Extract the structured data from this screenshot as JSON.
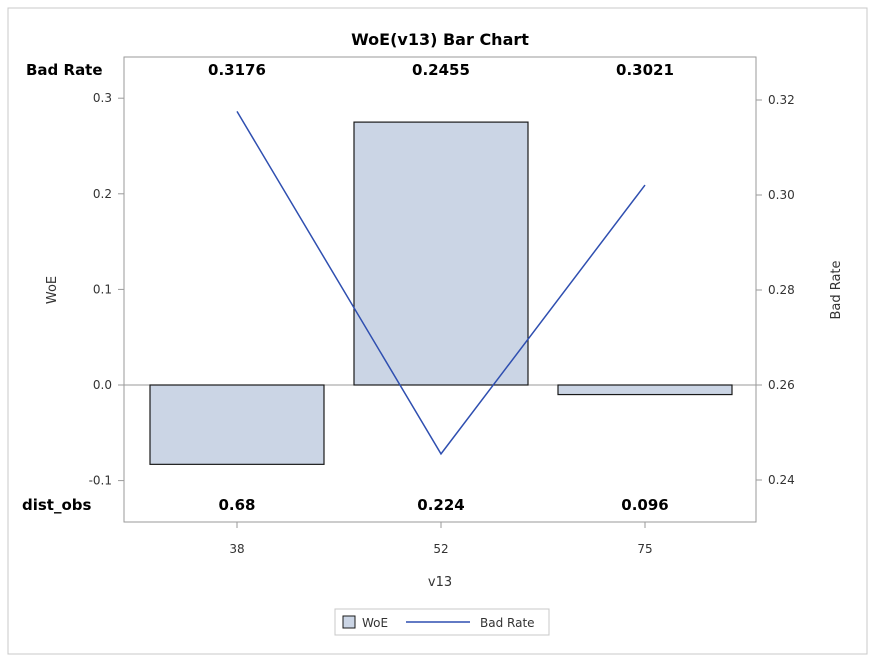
{
  "chart_data": {
    "type": "bar",
    "title": "WoE(v13) Bar Chart",
    "xlabel": "v13",
    "ylabel": "WoE",
    "y2label": "Bad Rate",
    "categories": [
      "38",
      "52",
      "75"
    ],
    "series": [
      {
        "name": "WoE",
        "type": "bar",
        "axis": "left",
        "values": [
          -0.083,
          0.275,
          -0.01
        ]
      },
      {
        "name": "Bad Rate",
        "type": "line",
        "axis": "right",
        "values": [
          0.3176,
          0.2455,
          0.3021
        ]
      }
    ],
    "ylim": [
      -0.1,
      0.3
    ],
    "yticks": [
      -0.1,
      0.0,
      0.1,
      0.2,
      0.3
    ],
    "y2ticks": [
      0.24,
      0.26,
      0.28,
      0.3,
      0.32
    ],
    "top_row": {
      "label": "Bad Rate",
      "values": [
        "0.3176",
        "0.2455",
        "0.3021"
      ]
    },
    "bottom_row": {
      "label": "dist_obs",
      "values": [
        "0.68",
        "0.224",
        "0.096"
      ]
    },
    "legend": {
      "position": "bottom-center",
      "items": [
        "WoE",
        "Bad Rate"
      ]
    },
    "grid": false,
    "colors": {
      "bar_fill": "#cbd5e5",
      "bar_stroke": "#1a1a1a",
      "line": "#2f4fb0",
      "zero_line": "#9a9a9a"
    }
  }
}
